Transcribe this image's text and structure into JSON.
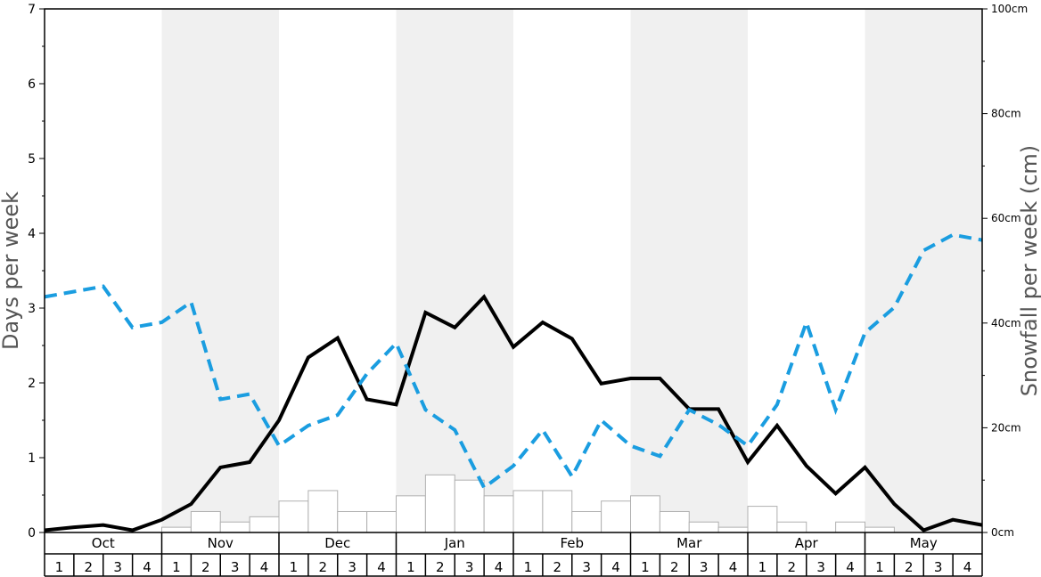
{
  "chart_data": {
    "type": "bar",
    "left_axis": {
      "label": "Days per week",
      "ylim": [
        0,
        7
      ],
      "ticks": [
        "0",
        "1",
        "2",
        "3",
        "4",
        "5",
        "6",
        "7"
      ]
    },
    "right_axis": {
      "label": "Snowfall per week (cm)",
      "ylim": [
        0,
        100
      ],
      "ticks": [
        "0cm",
        "20cm",
        "40cm",
        "60cm",
        "80cm",
        "100cm"
      ]
    },
    "months": [
      "Oct",
      "Nov",
      "Dec",
      "Jan",
      "Feb",
      "Mar",
      "Apr",
      "May"
    ],
    "weeks": [
      "1",
      "2",
      "3",
      "4"
    ],
    "grid": false,
    "snowfall_cm": [
      0,
      0,
      0,
      0,
      1,
      4,
      2,
      3,
      6,
      8,
      4,
      4,
      7,
      11,
      10,
      7,
      8,
      8,
      4,
      6,
      7,
      4,
      2,
      1,
      5,
      2,
      0,
      2,
      1,
      0,
      0,
      0
    ],
    "series": [
      {
        "style": "solid-black",
        "axis": "left",
        "values": [
          0.03,
          0.07,
          0.1,
          0.03,
          0.17,
          0.38,
          0.87,
          0.94,
          1.5,
          2.34,
          2.6,
          1.78,
          1.71,
          2.94,
          2.74,
          3.15,
          2.48,
          2.81,
          2.59,
          1.99,
          2.06,
          2.06,
          1.65,
          1.65,
          0.94,
          1.43,
          0.89,
          0.52,
          0.87,
          0.38,
          0.03,
          0.17,
          0.1
        ]
      },
      {
        "style": "dashed-blue",
        "axis": "left",
        "values": [
          3.15,
          3.22,
          3.29,
          2.74,
          2.81,
          3.08,
          1.78,
          1.85,
          1.16,
          1.43,
          1.57,
          2.12,
          2.53,
          1.64,
          1.37,
          0.6,
          0.89,
          1.37,
          0.75,
          1.5,
          1.16,
          1.02,
          1.64,
          1.44,
          1.16,
          1.71,
          2.81,
          1.64,
          2.67,
          3.01,
          3.77,
          3.98,
          3.91
        ]
      }
    ],
    "colors": {
      "stripe": "#f0f0f0",
      "bar_fill": "#ffffff",
      "bar_stroke": "#b0b0b0",
      "solid_line": "#000000",
      "dashed_line": "#1a9de0",
      "axis_label": "#555555"
    }
  }
}
